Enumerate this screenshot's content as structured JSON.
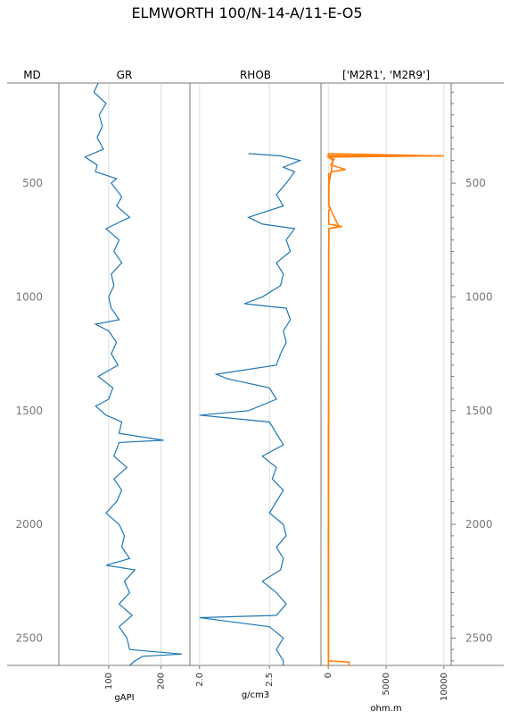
{
  "chart_data": {
    "type": "line",
    "title": "ELMWORTH 100/N-14-A/11-E-O5",
    "depth_axis": {
      "label": "MD",
      "range": [
        60,
        2620
      ],
      "ticks": [
        500,
        1000,
        1500,
        2000,
        2500
      ],
      "tick_labels": [
        "500",
        "1000",
        "1500",
        "2000",
        "2500"
      ]
    },
    "tracks": [
      {
        "header": "GR",
        "unit": "gAPI",
        "xlim": [
          10,
          250
        ],
        "ticks": [
          100,
          200
        ],
        "tick_labels": [
          "100",
          "200"
        ],
        "series": [
          {
            "name": "GR",
            "color": "#1f77b4",
            "points": [
              [
                60,
                80
              ],
              [
                100,
                72
              ],
              [
                150,
                95
              ],
              [
                200,
                82
              ],
              [
                250,
                88
              ],
              [
                300,
                78
              ],
              [
                350,
                90
              ],
              [
                385,
                55
              ],
              [
                420,
                78
              ],
              [
                450,
                75
              ],
              [
                480,
                115
              ],
              [
                500,
                105
              ],
              [
                560,
                125
              ],
              [
                600,
                115
              ],
              [
                650,
                140
              ],
              [
                700,
                95
              ],
              [
                750,
                120
              ],
              [
                800,
                110
              ],
              [
                850,
                125
              ],
              [
                900,
                105
              ],
              [
                950,
                110
              ],
              [
                1000,
                100
              ],
              [
                1050,
                105
              ],
              [
                1100,
                120
              ],
              [
                1120,
                75
              ],
              [
                1150,
                100
              ],
              [
                1200,
                115
              ],
              [
                1250,
                105
              ],
              [
                1300,
                118
              ],
              [
                1350,
                80
              ],
              [
                1400,
                108
              ],
              [
                1450,
                100
              ],
              [
                1480,
                75
              ],
              [
                1520,
                95
              ],
              [
                1550,
                125
              ],
              [
                1600,
                120
              ],
              [
                1630,
                205
              ],
              [
                1640,
                120
              ],
              [
                1700,
                110
              ],
              [
                1750,
                135
              ],
              [
                1800,
                110
              ],
              [
                1850,
                125
              ],
              [
                1900,
                115
              ],
              [
                1950,
                95
              ],
              [
                2000,
                120
              ],
              [
                2050,
                130
              ],
              [
                2100,
                125
              ],
              [
                2150,
                140
              ],
              [
                2180,
                95
              ],
              [
                2200,
                150
              ],
              [
                2250,
                130
              ],
              [
                2300,
                140
              ],
              [
                2350,
                120
              ],
              [
                2400,
                145
              ],
              [
                2450,
                120
              ],
              [
                2500,
                135
              ],
              [
                2550,
                140
              ],
              [
                2570,
                240
              ],
              [
                2580,
                165
              ],
              [
                2600,
                150
              ],
              [
                2620,
                140
              ]
            ]
          }
        ]
      },
      {
        "header": "RHOB",
        "unit": "g/cm3",
        "xlim": [
          1.95,
          2.85
        ],
        "ticks": [
          2.0,
          2.5
        ],
        "tick_labels": [
          "2.0",
          "2.5"
        ],
        "series": [
          {
            "name": "RHOB",
            "color": "#1f77b4",
            "points": [
              [
                370,
                2.35
              ],
              [
                380,
                2.58
              ],
              [
                400,
                2.72
              ],
              [
                430,
                2.6
              ],
              [
                450,
                2.68
              ],
              [
                500,
                2.62
              ],
              [
                550,
                2.55
              ],
              [
                600,
                2.6
              ],
              [
                650,
                2.35
              ],
              [
                680,
                2.45
              ],
              [
                700,
                2.68
              ],
              [
                750,
                2.62
              ],
              [
                800,
                2.65
              ],
              [
                850,
                2.55
              ],
              [
                900,
                2.6
              ],
              [
                950,
                2.58
              ],
              [
                1000,
                2.45
              ],
              [
                1030,
                2.32
              ],
              [
                1050,
                2.62
              ],
              [
                1100,
                2.65
              ],
              [
                1150,
                2.6
              ],
              [
                1200,
                2.62
              ],
              [
                1250,
                2.58
              ],
              [
                1300,
                2.55
              ],
              [
                1340,
                2.12
              ],
              [
                1360,
                2.2
              ],
              [
                1400,
                2.5
              ],
              [
                1450,
                2.55
              ],
              [
                1500,
                2.35
              ],
              [
                1520,
                2.0
              ],
              [
                1550,
                2.5
              ],
              [
                1600,
                2.55
              ],
              [
                1650,
                2.6
              ],
              [
                1700,
                2.45
              ],
              [
                1750,
                2.55
              ],
              [
                1800,
                2.52
              ],
              [
                1850,
                2.6
              ],
              [
                1900,
                2.55
              ],
              [
                1950,
                2.5
              ],
              [
                2000,
                2.6
              ],
              [
                2050,
                2.62
              ],
              [
                2100,
                2.55
              ],
              [
                2150,
                2.6
              ],
              [
                2200,
                2.58
              ],
              [
                2250,
                2.45
              ],
              [
                2300,
                2.55
              ],
              [
                2350,
                2.62
              ],
              [
                2400,
                2.55
              ],
              [
                2410,
                2.0
              ],
              [
                2450,
                2.5
              ],
              [
                2500,
                2.6
              ],
              [
                2550,
                2.55
              ],
              [
                2600,
                2.6
              ],
              [
                2620,
                2.6
              ]
            ]
          }
        ]
      },
      {
        "header": "['M2R1', 'M2R9']",
        "unit": "ohm.m",
        "xlim": [
          -400,
          10400
        ],
        "ticks": [
          0,
          5000,
          10000
        ],
        "tick_labels": [
          "0",
          "5000",
          "10000"
        ],
        "series": [
          {
            "name": "M2R1",
            "color": "#ff7f0e",
            "points": [
              [
                370,
                0
              ],
              [
                378,
                0
              ],
              [
                380,
                10000
              ],
              [
                382,
                0
              ],
              [
                395,
                500
              ],
              [
                420,
                200
              ],
              [
                440,
                1500
              ],
              [
                450,
                300
              ],
              [
                460,
                50
              ],
              [
                500,
                40
              ],
              [
                600,
                40
              ],
              [
                610,
                200
              ],
              [
                620,
                50
              ],
              [
                680,
                40
              ],
              [
                690,
                1200
              ],
              [
                700,
                60
              ],
              [
                800,
                40
              ],
              [
                900,
                40
              ],
              [
                1000,
                30
              ],
              [
                1100,
                30
              ],
              [
                1200,
                30
              ],
              [
                1300,
                30
              ],
              [
                1400,
                30
              ],
              [
                1500,
                25
              ],
              [
                1600,
                20
              ],
              [
                1700,
                20
              ],
              [
                1800,
                20
              ],
              [
                1900,
                20
              ],
              [
                2000,
                20
              ],
              [
                2100,
                20
              ],
              [
                2200,
                20
              ],
              [
                2300,
                20
              ],
              [
                2400,
                15
              ],
              [
                2500,
                15
              ],
              [
                2600,
                15
              ],
              [
                2605,
                1800
              ],
              [
                2620,
                1800
              ]
            ]
          },
          {
            "name": "M2R9",
            "color": "#ff7f0e",
            "points": [
              [
                370,
                0
              ],
              [
                380,
                9800
              ],
              [
                385,
                0
              ],
              [
                400,
                400
              ],
              [
                450,
                250
              ],
              [
                500,
                60
              ],
              [
                600,
                50
              ],
              [
                690,
                900
              ],
              [
                700,
                50
              ],
              [
                1000,
                40
              ],
              [
                1500,
                30
              ],
              [
                2000,
                25
              ],
              [
                2500,
                20
              ],
              [
                2620,
                20
              ]
            ]
          }
        ]
      }
    ],
    "grid": true
  }
}
